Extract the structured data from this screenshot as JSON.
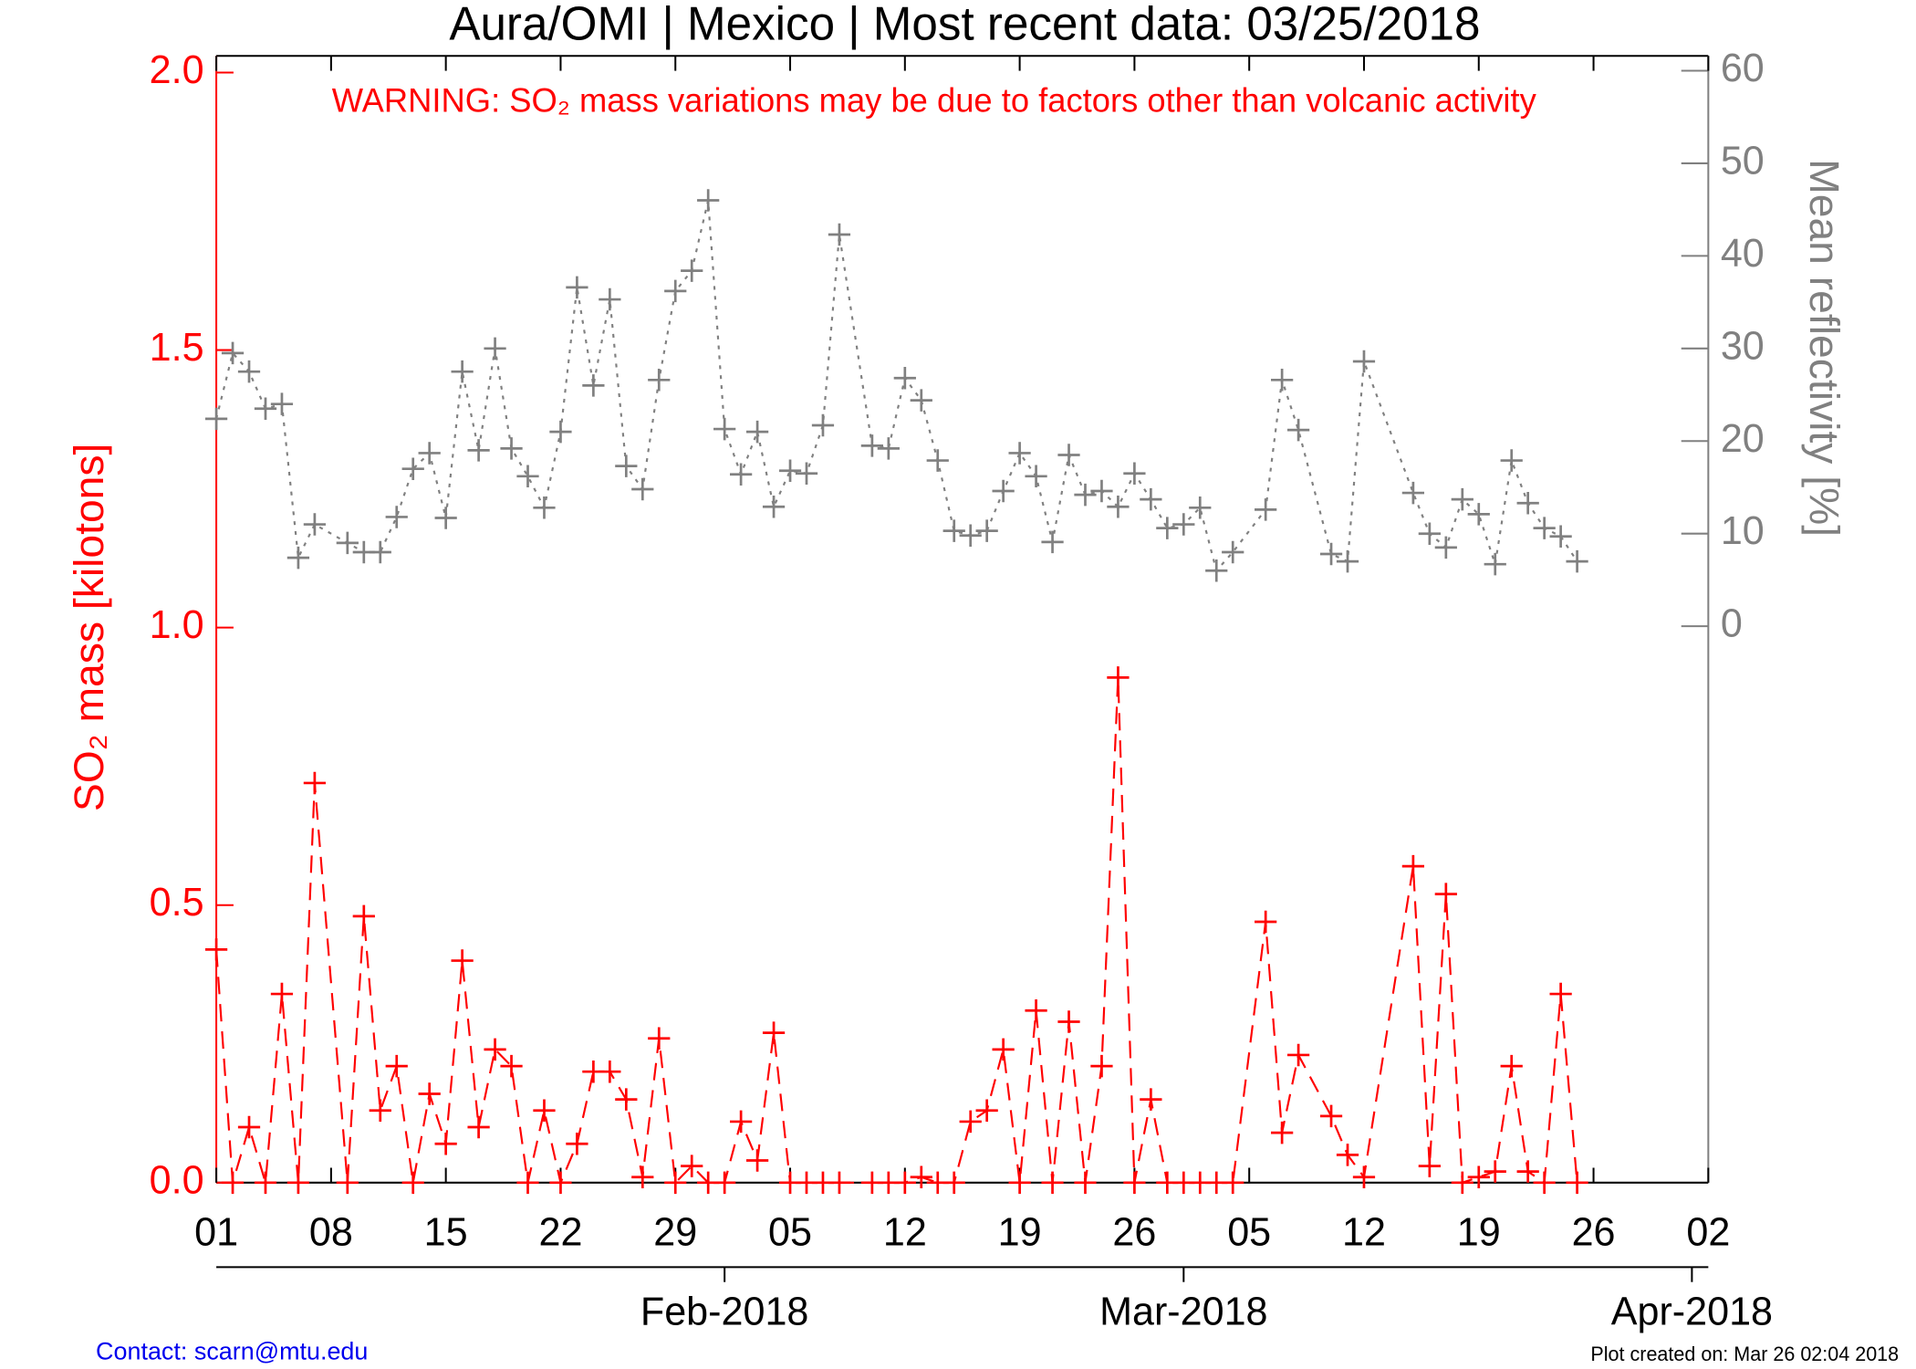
{
  "chart_data": {
    "type": "line",
    "title": "Aura/OMI | Mexico | Most recent data: 03/25/2018",
    "annotation": "WARNING: SO₂ mass variations may be due to factors other than volcanic activity",
    "ylabel": "SO₂ mass [kilotons]",
    "y2label": "Mean reflectivity [%]",
    "contact": "Contact: scarn@mtu.edu",
    "created": "Plot created on: Mar 26 02:04 2018",
    "xlim": [
      "2018-01-01",
      "2018-04-02"
    ],
    "xticks": [
      {
        "value": "2018-01-01",
        "label": "01"
      },
      {
        "value": "2018-01-08",
        "label": "08"
      },
      {
        "value": "2018-01-15",
        "label": "15"
      },
      {
        "value": "2018-01-22",
        "label": "22"
      },
      {
        "value": "2018-01-29",
        "label": "29"
      },
      {
        "value": "2018-02-05",
        "label": "05"
      },
      {
        "value": "2018-02-12",
        "label": "12"
      },
      {
        "value": "2018-02-19",
        "label": "19"
      },
      {
        "value": "2018-02-26",
        "label": "26"
      },
      {
        "value": "2018-03-05",
        "label": "05"
      },
      {
        "value": "2018-03-12",
        "label": "12"
      },
      {
        "value": "2018-03-19",
        "label": "19"
      },
      {
        "value": "2018-03-26",
        "label": "26"
      },
      {
        "value": "2018-04-02",
        "label": "02"
      }
    ],
    "month_ticks": [
      {
        "value": "2018-02-01",
        "label": "Feb-2018"
      },
      {
        "value": "2018-03-01",
        "label": "Mar-2018"
      },
      {
        "value": "2018-04-01",
        "label": "Apr-2018"
      }
    ],
    "ylim": [
      0,
      2.03
    ],
    "yticks": [
      {
        "value": 0,
        "label": "0.0"
      },
      {
        "value": 0.5,
        "label": "0.5"
      },
      {
        "value": 1,
        "label": "1.0"
      },
      {
        "value": 1.5,
        "label": "1.5"
      },
      {
        "value": 2,
        "label": "2.0"
      }
    ],
    "y2lim": [
      -60.1,
      61.6
    ],
    "y2ticks": [
      0,
      10,
      20,
      30,
      40,
      50,
      60
    ],
    "x": [
      "2018-01-01",
      "2018-01-02",
      "2018-01-03",
      "2018-01-04",
      "2018-01-05",
      "2018-01-06",
      "2018-01-07",
      "2018-01-09",
      "2018-01-10",
      "2018-01-11",
      "2018-01-12",
      "2018-01-13",
      "2018-01-14",
      "2018-01-15",
      "2018-01-16",
      "2018-01-17",
      "2018-01-18",
      "2018-01-19",
      "2018-01-20",
      "2018-01-21",
      "2018-01-22",
      "2018-01-23",
      "2018-01-24",
      "2018-01-25",
      "2018-01-26",
      "2018-01-27",
      "2018-01-28",
      "2018-01-29",
      "2018-01-30",
      "2018-01-31",
      "2018-02-01",
      "2018-02-02",
      "2018-02-03",
      "2018-02-04",
      "2018-02-05",
      "2018-02-06",
      "2018-02-07",
      "2018-02-08",
      "2018-02-10",
      "2018-02-11",
      "2018-02-12",
      "2018-02-13",
      "2018-02-14",
      "2018-02-15",
      "2018-02-16",
      "2018-02-17",
      "2018-02-18",
      "2018-02-19",
      "2018-02-20",
      "2018-02-21",
      "2018-02-22",
      "2018-02-23",
      "2018-02-24",
      "2018-02-25",
      "2018-02-26",
      "2018-02-27",
      "2018-02-28",
      "2018-03-01",
      "2018-03-02",
      "2018-03-03",
      "2018-03-04",
      "2018-03-06",
      "2018-03-07",
      "2018-03-08",
      "2018-03-10",
      "2018-03-11",
      "2018-03-12",
      "2018-03-15",
      "2018-03-16",
      "2018-03-17",
      "2018-03-18",
      "2018-03-19",
      "2018-03-20",
      "2018-03-21",
      "2018-03-22",
      "2018-03-23",
      "2018-03-24",
      "2018-03-25"
    ],
    "series": [
      {
        "color": "#ff0000",
        "dash": "14 8",
        "values": [
          0.42,
          0,
          0.1,
          0,
          0.34,
          0,
          0.72,
          0,
          0.48,
          0.13,
          0.21,
          0,
          0.16,
          0.07,
          0.4,
          0.1,
          0.24,
          0.21,
          0,
          0.13,
          0,
          0.07,
          0.2,
          0.2,
          0.15,
          0.01,
          0.26,
          0,
          0.03,
          0,
          0,
          0.11,
          0.04,
          0.27,
          0,
          0,
          0,
          0,
          0,
          0,
          0,
          0.01,
          0,
          0,
          0.11,
          0.13,
          0.24,
          0,
          0.31,
          0,
          0.29,
          0,
          0.21,
          0.91,
          0,
          0.15,
          0,
          0,
          0,
          0,
          0,
          0.47,
          0.09,
          0.23,
          0.12,
          0.05,
          0.01,
          0.57,
          0.03,
          0.52,
          0,
          0.01,
          0.02,
          0.21,
          0.02,
          0,
          0.34,
          0
        ]
      },
      {
        "color": "#808080",
        "dash": "3 5",
        "axis": "y2",
        "values": [
          22.4,
          29.5,
          27.5,
          23.5,
          24,
          7.4,
          11,
          9,
          8,
          8,
          11.8,
          17,
          18.7,
          11.7,
          27.5,
          19,
          30,
          19.2,
          16.2,
          12.8,
          21,
          36.6,
          26,
          35.3,
          17.3,
          14.8,
          26.6,
          36.2,
          38.4,
          46,
          21.3,
          16.4,
          21,
          12.9,
          16.8,
          16.5,
          21.7,
          42.3,
          19.5,
          19.2,
          26.8,
          24.4,
          17.9,
          10.3,
          9.8,
          10.3,
          14.6,
          18.7,
          16.2,
          9.1,
          18.5,
          14.2,
          14.6,
          12.9,
          16.5,
          13.7,
          10.6,
          11,
          12.8,
          6,
          8,
          12.6,
          26.6,
          21.2,
          7.8,
          7,
          28.6,
          14.4,
          10,
          8.5,
          13.7,
          12.1,
          6.7,
          17.9,
          13.3,
          10.6,
          9.7,
          7
        ]
      }
    ]
  }
}
